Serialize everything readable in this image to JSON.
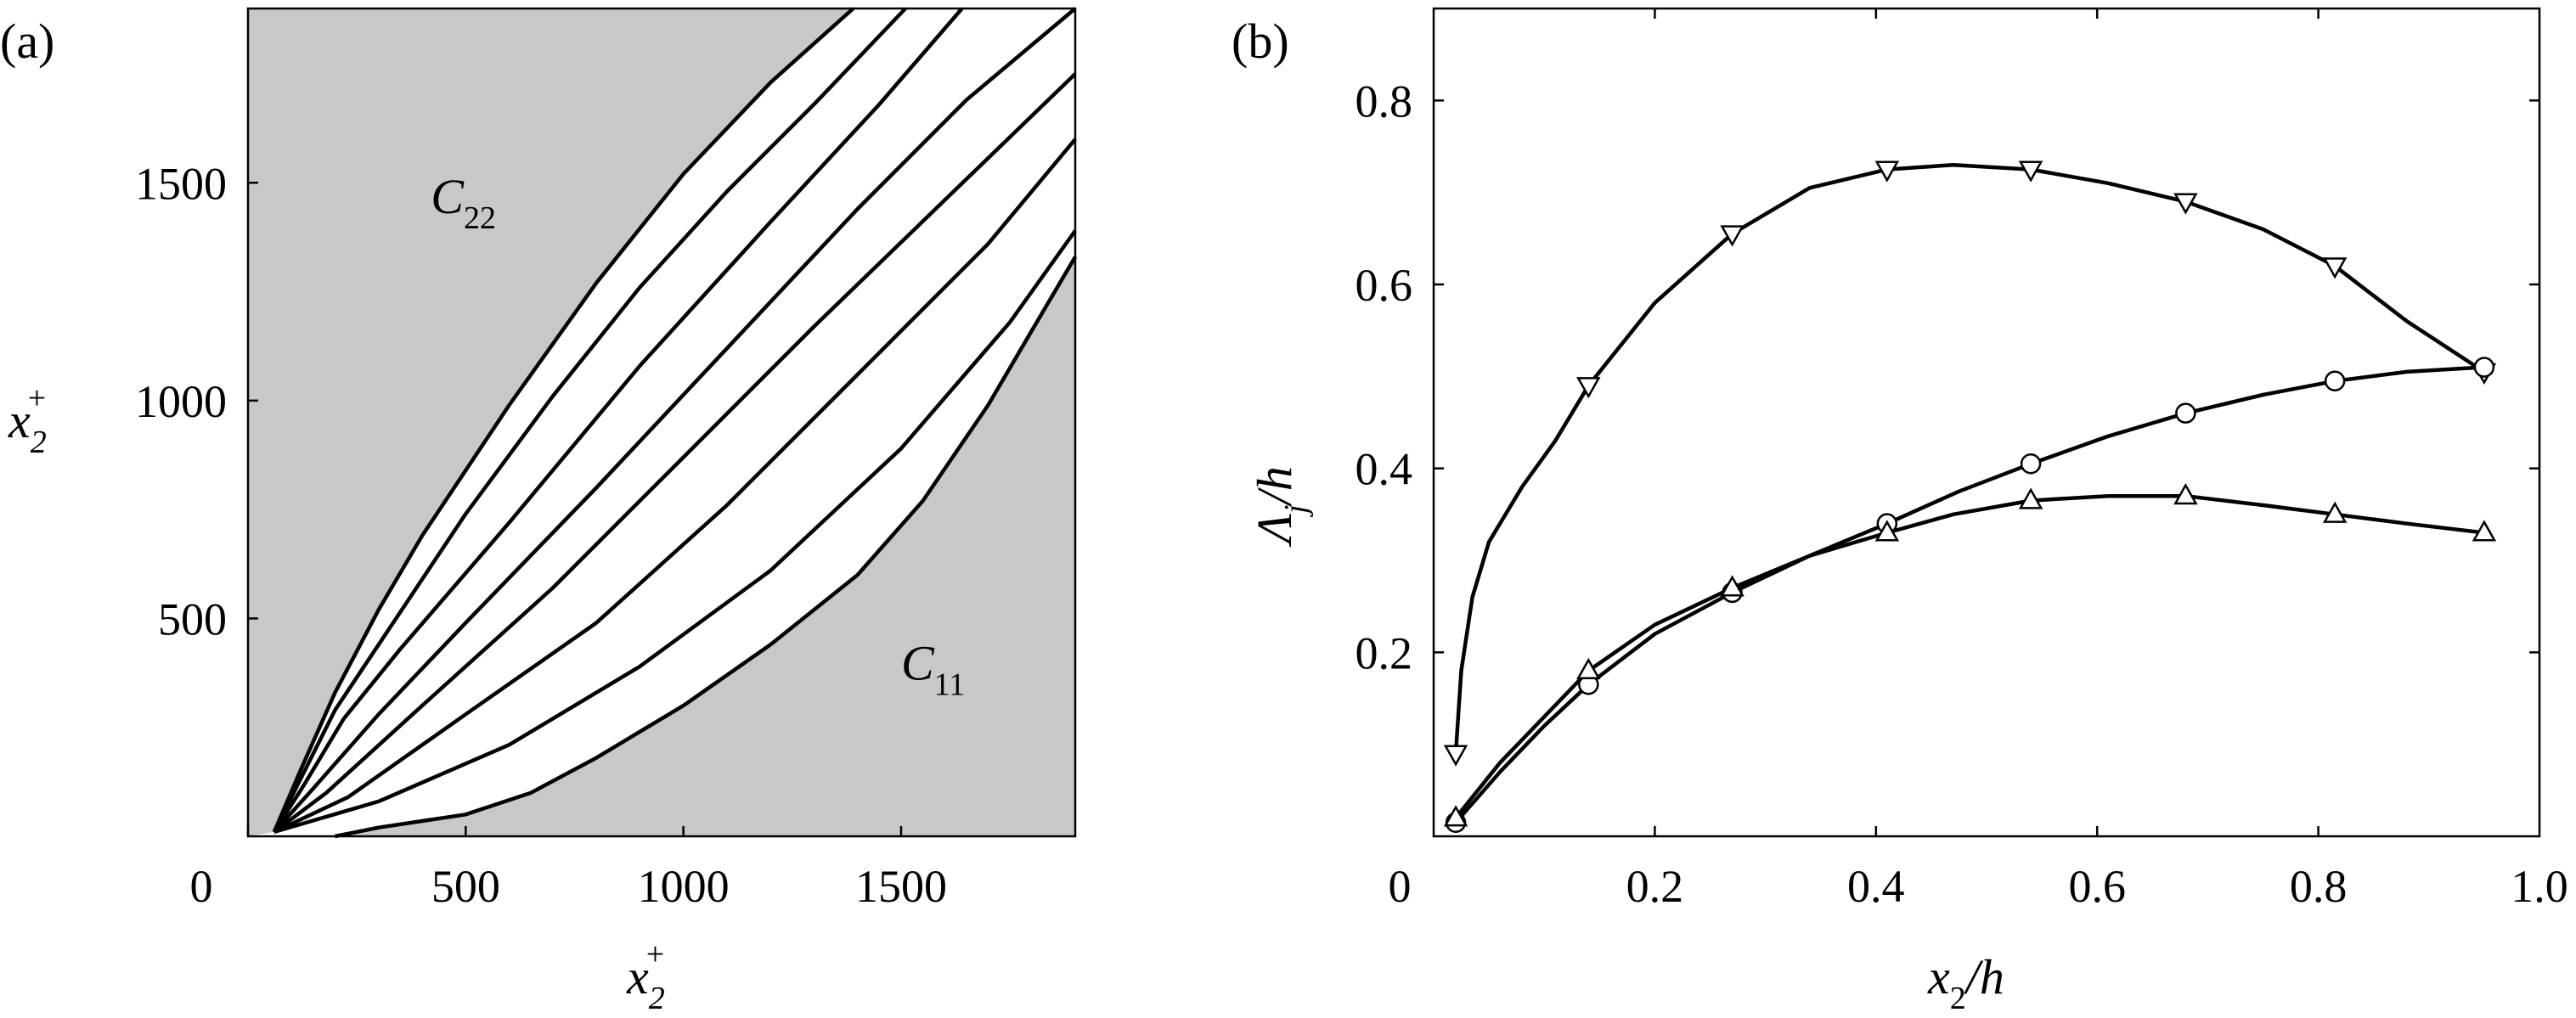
{
  "chart_data": [
    {
      "panel_label": "(a)",
      "type": "line",
      "xlabel": {
        "base": "x",
        "sub": "2",
        "sup": "+"
      },
      "ylabel": {
        "base": "x",
        "sub": "2",
        "sup": "+"
      },
      "xlim": [
        0,
        1900
      ],
      "ylim": [
        0,
        1900
      ],
      "xticks": [
        {
          "value": 0,
          "label": "0"
        },
        {
          "value": 500,
          "label": "500"
        },
        {
          "value": 1000,
          "label": "1000"
        },
        {
          "value": 1500,
          "label": "1500"
        }
      ],
      "yticks": [
        {
          "value": 500,
          "label": "500"
        },
        {
          "value": 1000,
          "label": "1000"
        },
        {
          "value": 1500,
          "label": "1500"
        }
      ],
      "region_labels": [
        {
          "base": "C",
          "sub": "22",
          "x": 420,
          "y": 1430
        },
        {
          "base": "C",
          "sub": "11",
          "x": 1500,
          "y": 360
        }
      ],
      "region_fill": "#c8c8c8",
      "series": [
        {
          "name": "boundary-upper",
          "boundary": "top-left",
          "points": [
            [
              60,
              10
            ],
            [
              120,
              150
            ],
            [
              200,
              330
            ],
            [
              300,
              520
            ],
            [
              400,
              690
            ],
            [
              600,
              990
            ],
            [
              800,
              1270
            ],
            [
              1000,
              1520
            ],
            [
              1200,
              1730
            ],
            [
              1390,
              1900
            ]
          ]
        },
        {
          "name": "contour-2",
          "points": [
            [
              60,
              10
            ],
            [
              120,
              130
            ],
            [
              200,
              290
            ],
            [
              300,
              440
            ],
            [
              500,
              740
            ],
            [
              700,
              1010
            ],
            [
              900,
              1260
            ],
            [
              1100,
              1480
            ],
            [
              1300,
              1680
            ],
            [
              1510,
              1900
            ]
          ]
        },
        {
          "name": "contour-3",
          "points": [
            [
              60,
              10
            ],
            [
              130,
              120
            ],
            [
              220,
              270
            ],
            [
              350,
              430
            ],
            [
              600,
              720
            ],
            [
              900,
              1080
            ],
            [
              1200,
              1410
            ],
            [
              1450,
              1680
            ],
            [
              1640,
              1900
            ]
          ]
        },
        {
          "name": "contour-4",
          "points": [
            [
              60,
              10
            ],
            [
              150,
              110
            ],
            [
              300,
              280
            ],
            [
              500,
              490
            ],
            [
              800,
              800
            ],
            [
              1100,
              1120
            ],
            [
              1400,
              1440
            ],
            [
              1650,
              1690
            ],
            [
              1900,
              1900
            ]
          ]
        },
        {
          "name": "contour-5",
          "points": [
            [
              60,
              10
            ],
            [
              180,
              100
            ],
            [
              400,
              300
            ],
            [
              700,
              570
            ],
            [
              1000,
              870
            ],
            [
              1300,
              1170
            ],
            [
              1600,
              1460
            ],
            [
              1900,
              1750
            ]
          ]
        },
        {
          "name": "contour-6",
          "points": [
            [
              60,
              10
            ],
            [
              230,
              90
            ],
            [
              500,
              280
            ],
            [
              800,
              490
            ],
            [
              1100,
              760
            ],
            [
              1400,
              1060
            ],
            [
              1700,
              1360
            ],
            [
              1900,
              1600
            ]
          ]
        },
        {
          "name": "contour-7",
          "points": [
            [
              60,
              10
            ],
            [
              300,
              80
            ],
            [
              600,
              210
            ],
            [
              900,
              390
            ],
            [
              1200,
              610
            ],
            [
              1500,
              890
            ],
            [
              1750,
              1180
            ],
            [
              1900,
              1390
            ]
          ]
        },
        {
          "name": "boundary-lower",
          "boundary": "bottom-right",
          "points": [
            [
              200,
              0
            ],
            [
              300,
              20
            ],
            [
              500,
              50
            ],
            [
              650,
              100
            ],
            [
              800,
              180
            ],
            [
              1000,
              300
            ],
            [
              1200,
              440
            ],
            [
              1400,
              600
            ],
            [
              1550,
              770
            ],
            [
              1700,
              990
            ],
            [
              1800,
              1160
            ],
            [
              1900,
              1330
            ]
          ]
        }
      ]
    },
    {
      "panel_label": "(b)",
      "type": "line",
      "xlabel": "x2/h",
      "ylabel": "Λj/h",
      "xlim": [
        0,
        1.0
      ],
      "ylim": [
        0,
        0.9
      ],
      "xticks": [
        {
          "value": 0,
          "label": "0"
        },
        {
          "value": 0.2,
          "label": "0.2"
        },
        {
          "value": 0.4,
          "label": "0.4"
        },
        {
          "value": 0.6,
          "label": "0.6"
        },
        {
          "value": 0.8,
          "label": "0.8"
        },
        {
          "value": 1.0,
          "label": "1.0"
        }
      ],
      "yticks": [
        {
          "value": 0.2,
          "label": "0.2"
        },
        {
          "value": 0.4,
          "label": "0.4"
        },
        {
          "value": 0.6,
          "label": "0.6"
        },
        {
          "value": 0.8,
          "label": "0.8"
        }
      ],
      "series": [
        {
          "name": "down-triangle",
          "marker": "triangle-down",
          "curve": [
            [
              0.02,
              0.09
            ],
            [
              0.025,
              0.18
            ],
            [
              0.035,
              0.26
            ],
            [
              0.05,
              0.32
            ],
            [
              0.08,
              0.38
            ],
            [
              0.11,
              0.43
            ],
            [
              0.14,
              0.49
            ],
            [
              0.2,
              0.58
            ],
            [
              0.27,
              0.655
            ],
            [
              0.34,
              0.705
            ],
            [
              0.41,
              0.725
            ],
            [
              0.47,
              0.73
            ],
            [
              0.54,
              0.725
            ],
            [
              0.61,
              0.71
            ],
            [
              0.68,
              0.69
            ],
            [
              0.75,
              0.66
            ],
            [
              0.815,
              0.62
            ],
            [
              0.88,
              0.56
            ],
            [
              0.95,
              0.505
            ]
          ],
          "markers": [
            [
              0.02,
              0.09
            ],
            [
              0.14,
              0.49
            ],
            [
              0.27,
              0.655
            ],
            [
              0.41,
              0.725
            ],
            [
              0.54,
              0.725
            ],
            [
              0.68,
              0.69
            ],
            [
              0.815,
              0.62
            ],
            [
              0.95,
              0.505
            ]
          ]
        },
        {
          "name": "circle",
          "marker": "circle",
          "curve": [
            [
              0.02,
              0.015
            ],
            [
              0.06,
              0.07
            ],
            [
              0.1,
              0.12
            ],
            [
              0.14,
              0.165
            ],
            [
              0.2,
              0.22
            ],
            [
              0.27,
              0.265
            ],
            [
              0.34,
              0.305
            ],
            [
              0.41,
              0.34
            ],
            [
              0.475,
              0.375
            ],
            [
              0.54,
              0.405
            ],
            [
              0.61,
              0.435
            ],
            [
              0.68,
              0.46
            ],
            [
              0.75,
              0.48
            ],
            [
              0.815,
              0.495
            ],
            [
              0.88,
              0.505
            ],
            [
              0.95,
              0.51
            ]
          ],
          "markers": [
            [
              0.02,
              0.015
            ],
            [
              0.14,
              0.165
            ],
            [
              0.27,
              0.265
            ],
            [
              0.41,
              0.34
            ],
            [
              0.54,
              0.405
            ],
            [
              0.68,
              0.46
            ],
            [
              0.815,
              0.495
            ],
            [
              0.95,
              0.51
            ]
          ]
        },
        {
          "name": "up-triangle",
          "marker": "triangle-up",
          "curve": [
            [
              0.02,
              0.02
            ],
            [
              0.06,
              0.08
            ],
            [
              0.1,
              0.13
            ],
            [
              0.14,
              0.18
            ],
            [
              0.2,
              0.23
            ],
            [
              0.27,
              0.27
            ],
            [
              0.34,
              0.305
            ],
            [
              0.41,
              0.33
            ],
            [
              0.47,
              0.35
            ],
            [
              0.54,
              0.365
            ],
            [
              0.61,
              0.37
            ],
            [
              0.68,
              0.37
            ],
            [
              0.75,
              0.36
            ],
            [
              0.815,
              0.35
            ],
            [
              0.88,
              0.34
            ],
            [
              0.95,
              0.33
            ]
          ],
          "markers": [
            [
              0.02,
              0.02
            ],
            [
              0.14,
              0.18
            ],
            [
              0.27,
              0.27
            ],
            [
              0.41,
              0.33
            ],
            [
              0.54,
              0.365
            ],
            [
              0.68,
              0.37
            ],
            [
              0.815,
              0.35
            ],
            [
              0.95,
              0.33
            ]
          ]
        }
      ]
    }
  ]
}
